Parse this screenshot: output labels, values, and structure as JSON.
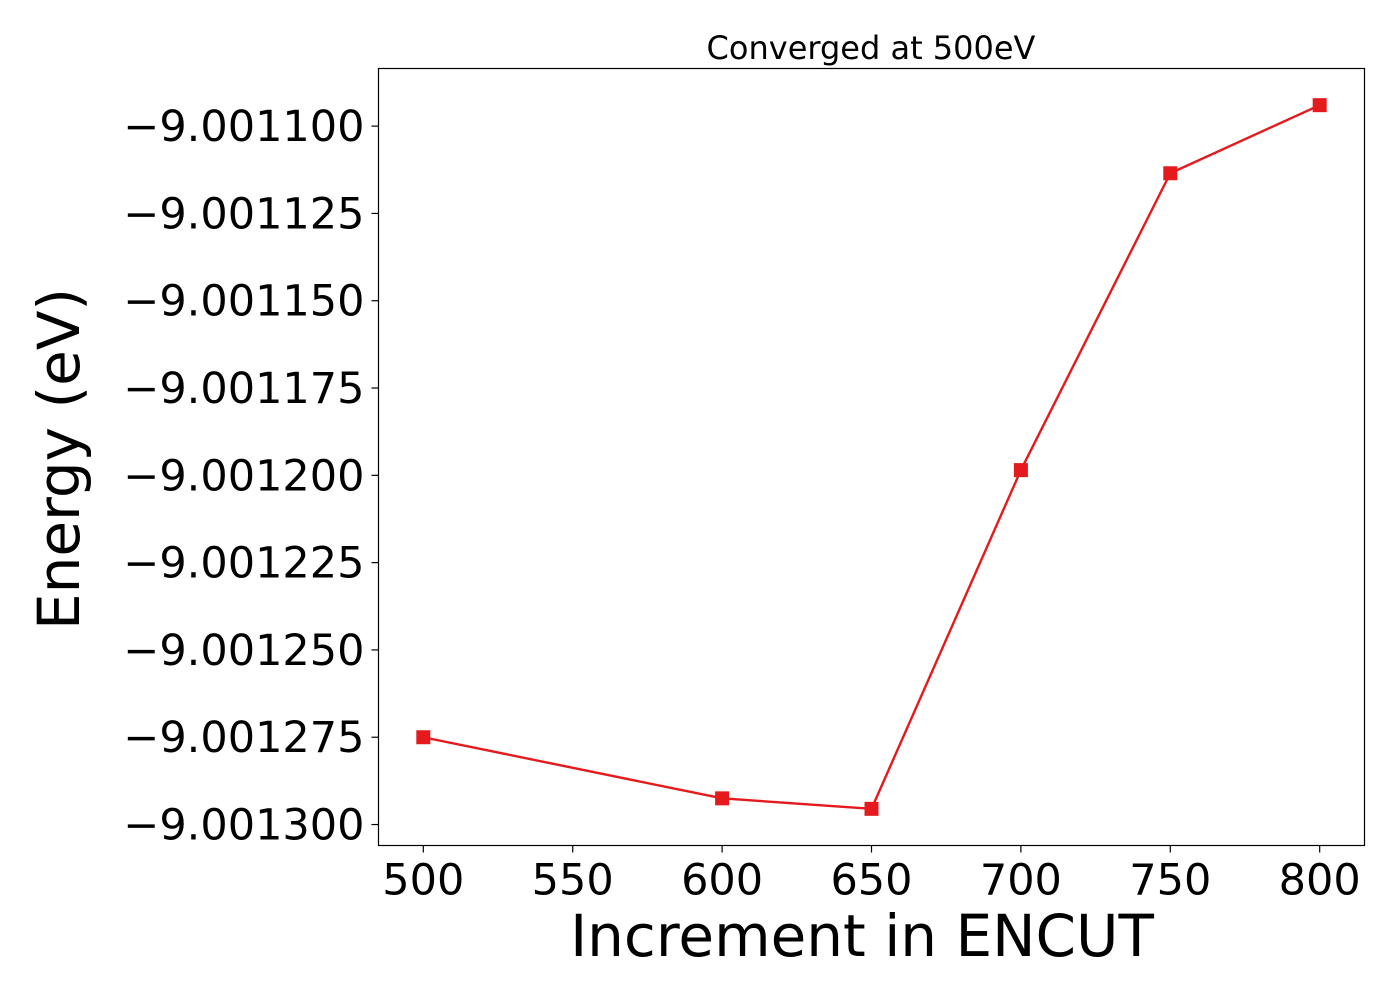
{
  "chart_data": {
    "type": "line",
    "title": "Converged at 500eV",
    "xlabel": "Increment in ENCUT",
    "ylabel": "Energy (eV)",
    "x": [
      500,
      600,
      650,
      700,
      750,
      800
    ],
    "series": [
      {
        "values": [
          -9.001275,
          -9.0012925,
          -9.0012955,
          -9.0011985,
          -9.0011135,
          -9.001094
        ],
        "color": "#e41a1c",
        "marker": "square"
      }
    ],
    "xlim": [
      485,
      815
    ],
    "ylim": [
      -9.001306,
      -9.0010835
    ],
    "xticks": [
      500,
      550,
      600,
      650,
      700,
      750,
      800
    ],
    "xtick_labels": [
      "500",
      "550",
      "600",
      "650",
      "700",
      "750",
      "800"
    ],
    "yticks": [
      -9.0011,
      -9.001125,
      -9.00115,
      -9.001175,
      -9.0012,
      -9.001225,
      -9.00125,
      -9.001275,
      -9.0013
    ],
    "ytick_labels": [
      "−9.001100",
      "−9.001125",
      "−9.001150",
      "−9.001175",
      "−9.001200",
      "−9.001225",
      "−9.001250",
      "−9.001275",
      "−9.001300"
    ],
    "grid": false,
    "legend": "none"
  }
}
